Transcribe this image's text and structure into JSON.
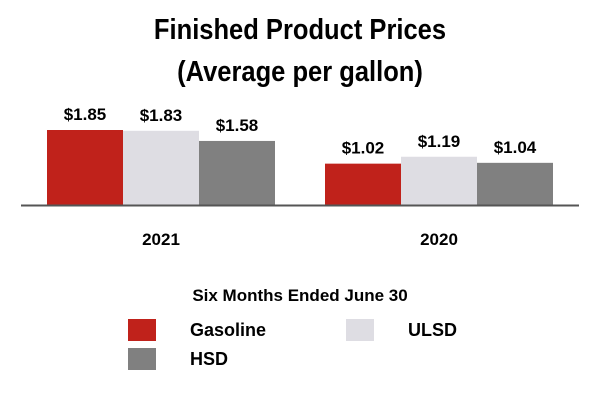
{
  "chart_data": {
    "type": "bar",
    "title": "Finished Product Prices",
    "subtitle": "(Average per gallon)",
    "xlabel": "Six Months Ended June 30",
    "ylabel": "",
    "categories": [
      "2021",
      "2020"
    ],
    "series": [
      {
        "name": "Gasoline",
        "values": [
          1.85,
          1.02
        ],
        "labels": [
          "$1.85",
          "$1.02"
        ],
        "color": "#c0221b"
      },
      {
        "name": "ULSD",
        "values": [
          1.83,
          1.19
        ],
        "labels": [
          "$1.83",
          "$1.19"
        ],
        "color": "#dedde3"
      },
      {
        "name": "HSD",
        "values": [
          1.58,
          1.04
        ],
        "labels": [
          "$1.58",
          "$1.04"
        ],
        "color": "#808080"
      }
    ],
    "ylim": [
      0,
      1.85
    ],
    "grid": false,
    "legend_position": "bottom"
  }
}
